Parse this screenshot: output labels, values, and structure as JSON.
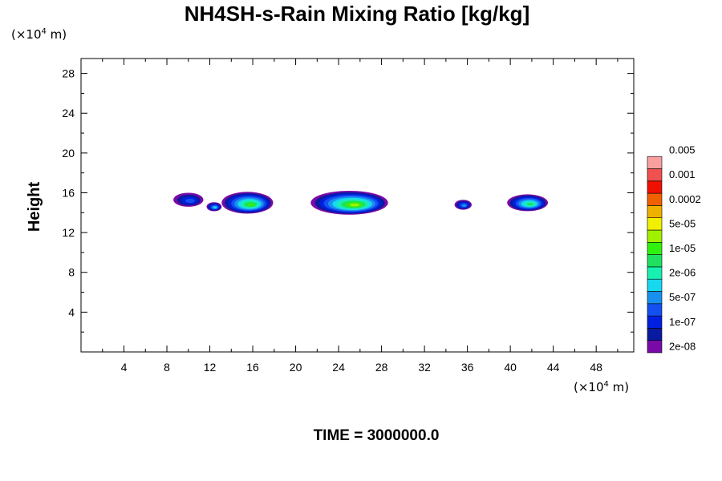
{
  "chart_data": {
    "type": "heatmap",
    "title": "NH4SH-s-Rain Mixing Ratio [kg/kg]",
    "ylabel": "Height",
    "x_unit": {
      "prefix": "(×10",
      "exp": "4",
      "suffix": " m)"
    },
    "y_unit": {
      "prefix": "(×10",
      "exp": "4",
      "suffix": " m)"
    },
    "xlim": [
      0,
      51.5
    ],
    "ylim": [
      0,
      29.5
    ],
    "x_ticks": [
      4,
      8,
      12,
      16,
      20,
      24,
      28,
      32,
      36,
      40,
      44,
      48
    ],
    "x_tick_labels": [
      "4",
      "8",
      "12",
      "16",
      "20",
      "24",
      "28",
      "32",
      "36",
      "40",
      "44",
      "48"
    ],
    "y_ticks": [
      4,
      8,
      12,
      16,
      20,
      24,
      28
    ],
    "y_tick_labels": [
      "4",
      "8",
      "12",
      "16",
      "20",
      "24",
      "28"
    ],
    "colorbar": {
      "colors": [
        "#7a0aa8",
        "#0a1a9e",
        "#0020e0",
        "#1450f0",
        "#1890f0",
        "#18d8f0",
        "#18f0b0",
        "#20e060",
        "#30f010",
        "#a0f000",
        "#f0f000",
        "#f0b000",
        "#f06000",
        "#f01000",
        "#f05050",
        "#f8a0a0"
      ],
      "labels": [
        "2e-08",
        "1e-07",
        "5e-07",
        "2e-06",
        "1e-05",
        "5e-05",
        "0.0002",
        "0.001",
        "0.005"
      ]
    },
    "blobs": [
      {
        "cx": 10.0,
        "cy": 15.3,
        "rx": 1.4,
        "ry": 0.7,
        "level": 3
      },
      {
        "cx": 12.4,
        "cy": 14.6,
        "rx": 0.7,
        "ry": 0.45,
        "level": 5
      },
      {
        "cx": 15.5,
        "cy": 15.0,
        "rx": 2.4,
        "ry": 1.1,
        "level": 8
      },
      {
        "cx": 25.0,
        "cy": 15.0,
        "rx": 3.6,
        "ry": 1.2,
        "level": 9
      },
      {
        "cx": 35.6,
        "cy": 14.8,
        "rx": 0.8,
        "ry": 0.5,
        "level": 4
      },
      {
        "cx": 41.6,
        "cy": 15.0,
        "rx": 1.9,
        "ry": 0.85,
        "level": 7
      }
    ],
    "footer": "TIME = 3000000.0"
  }
}
